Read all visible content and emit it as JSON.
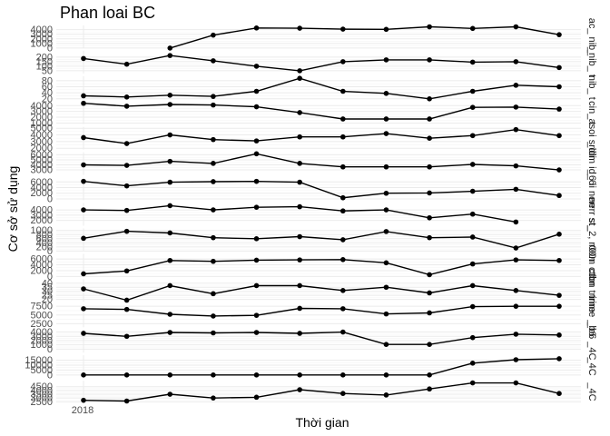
{
  "chart_data": {
    "type": "line",
    "title": "Phan loai BC",
    "xlabel": "Thời gian",
    "ylabel": "Cơ sở sử dụng",
    "x_tick_label": "2018",
    "n_points": 12,
    "grid": true,
    "panels": [
      {
        "strip": "ac_ nib_",
        "ylim": [
          0,
          4900
        ],
        "ticks": [
          0,
          1000,
          2000,
          3000,
          4000
        ],
        "tick_labels": [
          "0",
          "1000",
          "2000",
          "3000",
          "4000"
        ],
        "values": [
          null,
          null,
          0,
          2800,
          4350,
          4300,
          4100,
          4050,
          4600,
          4250,
          4600,
          2900
        ]
      },
      {
        "strip": "_nib_ t",
        "ylim": [
          20,
          270
        ],
        "ticks": [
          50,
          100,
          150,
          200
        ],
        "tick_labels": [
          "50",
          "100",
          "150",
          "200"
        ],
        "values": [
          185,
          122,
          218,
          160,
          100,
          50,
          150,
          170,
          170,
          145,
          150,
          85
        ]
      },
      {
        "strip": "nib_ t",
        "ylim": [
          20,
          95
        ],
        "ticks": [
          20,
          40,
          60,
          80
        ],
        "tick_labels": [
          "20",
          "40",
          "60",
          "80"
        ],
        "values": [
          30,
          26,
          32,
          28,
          45,
          88,
          45,
          38,
          20,
          45,
          65,
          60
        ]
      },
      {
        "strip": "cin_ t",
        "ylim": [
          800,
          4700
        ],
        "ticks": [
          1000,
          2000,
          3000,
          4000
        ],
        "tick_labels": [
          "1000",
          "2000",
          "3000",
          "4000"
        ],
        "values": [
          4400,
          3900,
          4200,
          4100,
          3800,
          2800,
          1700,
          1700,
          1700,
          3700,
          3750,
          3400
        ]
      },
      {
        "strip": "asoi srldi",
        "ylim": [
          1800,
          5200
        ],
        "ticks": [
          2000,
          3000,
          4000,
          5000
        ],
        "tick_labels": [
          "2000",
          "3000",
          "4000",
          "5000"
        ],
        "values": [
          3600,
          2700,
          4000,
          3300,
          3100,
          3700,
          3700,
          4200,
          3500,
          3900,
          4800,
          3900
        ]
      },
      {
        "strip": "_dim id_6",
        "ylim": [
          2000,
          6500
        ],
        "ticks": [
          3000,
          4000,
          5000,
          6000
        ],
        "tick_labels": [
          "3000",
          "4000",
          "5000",
          "6000"
        ],
        "values": [
          4000,
          3900,
          4700,
          4300,
          6200,
          4300,
          3600,
          3600,
          3600,
          4100,
          3800,
          3000
        ]
      },
      {
        "strip": "_6 ii nerr",
        "ylim": [
          -500,
          7500
        ],
        "ticks": [
          0,
          2000,
          4000,
          6000
        ],
        "tick_labels": [
          "0",
          "2000",
          "4000",
          "6000"
        ],
        "values": [
          6200,
          4600,
          5900,
          6100,
          6200,
          5900,
          400,
          2000,
          2100,
          2700,
          3400,
          1200
        ]
      },
      {
        "strip": "nerr st_",
        "ylim": [
          1000,
          5300
        ],
        "ticks": [
          2000,
          3000,
          4000
        ],
        "tick_labels": [
          "2000",
          "3000",
          "4000"
        ],
        "values": [
          4000,
          3900,
          4800,
          4000,
          4500,
          4600,
          3800,
          4000,
          2500,
          3200,
          1700,
          null
        ]
      },
      {
        "strip": "st_2, r00n",
        "ylim": [
          0,
          1100
        ],
        "ticks": [
          0,
          200,
          400,
          600,
          800,
          1000
        ],
        "tick_labels": [
          "0",
          "200",
          "400",
          "600",
          "800",
          "1000"
        ],
        "values": [
          620,
          960,
          880,
          650,
          600,
          700,
          550,
          950,
          650,
          680,
          150,
          820
        ]
      },
      {
        "strip": "r00n ctbn",
        "ylim": [
          0,
          7800
        ],
        "ticks": [
          0,
          2000,
          4000,
          6000
        ],
        "tick_labels": [
          "0",
          "2000",
          "4000",
          "6000"
        ],
        "values": [
          900,
          1900,
          5500,
          5200,
          5600,
          5700,
          5800,
          4700,
          600,
          4300,
          5700,
          5500
        ]
      },
      {
        "strip": "ctbn trime",
        "ylim": [
          17,
          45
        ],
        "ticks": [
          20,
          25,
          30,
          35,
          40
        ],
        "tick_labels": [
          "20",
          "25",
          "30",
          "35",
          "40"
        ],
        "values": [
          33,
          19,
          37,
          27,
          37,
          37,
          31,
          35,
          28,
          37,
          31,
          25
        ]
      },
      {
        "strip": "trime _b6",
        "ylim": [
          1500,
          8000
        ],
        "ticks": [
          2500,
          5000,
          7500
        ],
        "tick_labels": [
          "2500",
          "5000",
          "7500"
        ],
        "values": [
          6800,
          6600,
          5200,
          4700,
          4900,
          6900,
          6800,
          5300,
          5600,
          7400,
          7500,
          7500
        ]
      },
      {
        "strip": "_b6 _4C",
        "ylim": [
          -800,
          4500
        ],
        "ticks": [
          0,
          1000,
          2000,
          3000,
          4000
        ],
        "tick_labels": [
          "0",
          "1000",
          "2000",
          "3000",
          "4000"
        ],
        "values": [
          3700,
          3000,
          3900,
          3800,
          3900,
          3700,
          4000,
          1100,
          1100,
          2700,
          3500,
          3300
        ]
      },
      {
        "strip": "_4C",
        "ylim": [
          -3000,
          20000
        ],
        "ticks": [
          0,
          5000,
          10000,
          15000
        ],
        "tick_labels": [
          "0",
          "5000",
          "10000",
          "15000"
        ],
        "values": [
          0,
          0,
          0,
          0,
          0,
          0,
          0,
          0,
          0,
          12000,
          15500,
          16500
        ]
      },
      {
        "strip": "_4C",
        "ylim": [
          2300,
          5300
        ],
        "ticks": [
          2500,
          3000,
          3500,
          4000,
          4500
        ],
        "tick_labels": [
          "2500",
          "3000",
          "3500",
          "4000",
          "4500"
        ],
        "values": [
          2700,
          2600,
          3500,
          3000,
          3100,
          4100,
          3600,
          3400,
          4200,
          5000,
          5000,
          3600
        ]
      }
    ]
  }
}
